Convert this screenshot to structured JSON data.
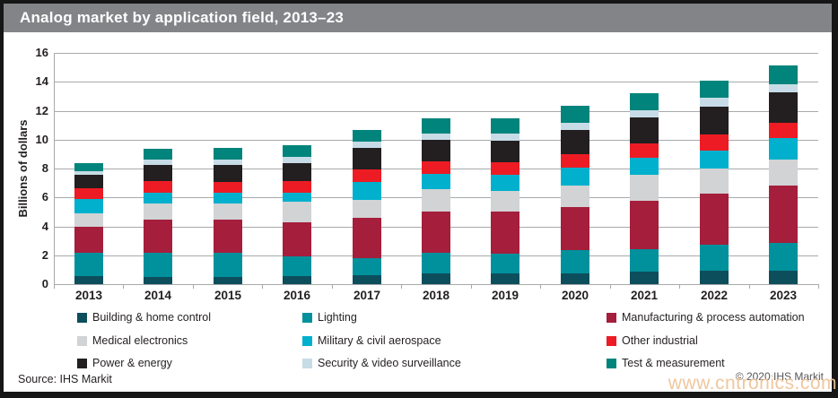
{
  "header": {
    "title": "Analog market by application field, 2013–23"
  },
  "chart_data": {
    "type": "bar",
    "stacked": true,
    "title": "Analog market by application field, 2013–23",
    "xlabel": "",
    "ylabel": "Billions of dollars",
    "ylim": [
      0,
      16
    ],
    "ytick_labels": [
      "0",
      "2",
      "4",
      "6",
      "8",
      "10",
      "12",
      "14",
      "16"
    ],
    "grid": true,
    "legend_position": "bottom",
    "categories": [
      "2013",
      "2014",
      "2015",
      "2016",
      "2017",
      "2018",
      "2019",
      "2020",
      "2021",
      "2022",
      "2023"
    ],
    "series": [
      {
        "name": "Building & home control",
        "color": "#0d4e5c",
        "values": [
          0.55,
          0.5,
          0.5,
          0.55,
          0.6,
          0.75,
          0.75,
          0.75,
          0.85,
          0.95,
          0.95
        ]
      },
      {
        "name": "Lighting",
        "color": "#00919c",
        "values": [
          1.6,
          1.65,
          1.65,
          1.4,
          1.2,
          1.4,
          1.35,
          1.6,
          1.55,
          1.8,
          1.9
        ]
      },
      {
        "name": "Manufacturing & process automation",
        "color": "#a51e3c",
        "values": [
          1.85,
          2.3,
          2.3,
          2.3,
          2.8,
          2.9,
          2.95,
          3.0,
          3.35,
          3.5,
          4.0
        ]
      },
      {
        "name": "Medical electronics",
        "color": "#d1d3d4",
        "values": [
          0.9,
          1.15,
          1.15,
          1.45,
          1.25,
          1.5,
          1.4,
          1.5,
          1.8,
          1.75,
          1.8
        ]
      },
      {
        "name": "Military & civil aerospace",
        "color": "#00b0cd",
        "values": [
          1.0,
          0.75,
          0.75,
          0.65,
          1.2,
          1.1,
          1.1,
          1.2,
          1.2,
          1.25,
          1.45
        ]
      },
      {
        "name": "Other industrial",
        "color": "#ed1c24",
        "values": [
          0.75,
          0.8,
          0.75,
          0.8,
          0.9,
          0.85,
          0.9,
          0.95,
          1.0,
          1.1,
          1.1
        ]
      },
      {
        "name": "Power & energy",
        "color": "#231f20",
        "values": [
          0.9,
          1.1,
          1.15,
          1.2,
          1.5,
          1.5,
          1.45,
          1.65,
          1.8,
          1.95,
          2.1
        ]
      },
      {
        "name": "Security & video surveillance",
        "color": "#c7dce6",
        "values": [
          0.3,
          0.35,
          0.4,
          0.45,
          0.4,
          0.4,
          0.5,
          0.5,
          0.5,
          0.6,
          0.55
        ]
      },
      {
        "name": "Test & measurement",
        "color": "#00847b",
        "values": [
          0.55,
          0.8,
          0.75,
          0.8,
          0.8,
          1.05,
          1.05,
          1.2,
          1.15,
          1.2,
          1.3
        ]
      }
    ],
    "totals": [
      8.4,
      9.4,
      9.4,
      9.6,
      10.65,
      11.45,
      11.45,
      12.35,
      13.2,
      14.1,
      15.15
    ]
  },
  "legend": {
    "items": [
      {
        "label": "Building & home control",
        "color": "#0d4e5c"
      },
      {
        "label": "Lighting",
        "color": "#00919c"
      },
      {
        "label": "Manufacturing & process automation",
        "color": "#a51e3c"
      },
      {
        "label": "Medical electronics",
        "color": "#d1d3d4"
      },
      {
        "label": "Military & civil aerospace",
        "color": "#00b0cd"
      },
      {
        "label": "Other industrial",
        "color": "#ed1c24"
      },
      {
        "label": "Power & energy",
        "color": "#231f20"
      },
      {
        "label": "Security & video surveillance",
        "color": "#c7dce6"
      },
      {
        "label": "Test & measurement",
        "color": "#00847b"
      }
    ]
  },
  "footer": {
    "source": "Source: IHS Markit",
    "copyright": "© 2020 IHS Markit",
    "watermark": "www.cntronics.com"
  }
}
